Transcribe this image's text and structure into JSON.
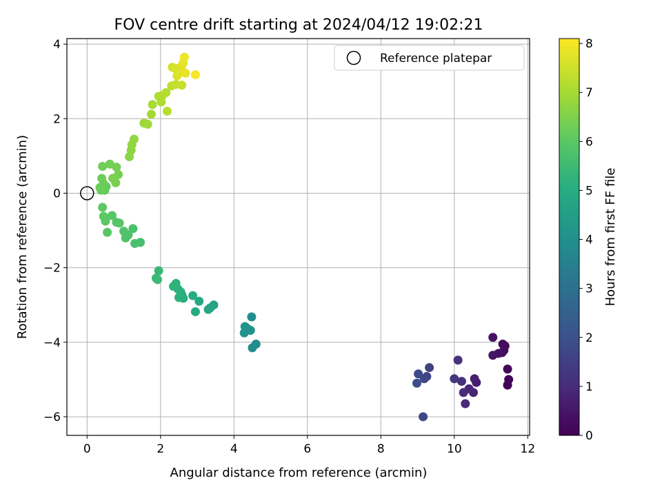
{
  "chart_data": {
    "type": "scatter",
    "title": "FOV centre drift starting at 2024/04/12 19:02:21",
    "xlabel": "Angular distance from reference (arcmin)",
    "ylabel": "Rotation from reference (arcmin)",
    "xlim": [
      -0.55,
      12.05
    ],
    "ylim": [
      -6.5,
      4.15
    ],
    "xticks": [
      0,
      2,
      4,
      6,
      8,
      10,
      12
    ],
    "yticks": [
      -6,
      -4,
      -2,
      0,
      2,
      4
    ],
    "grid": true,
    "legend": {
      "position": "top-right",
      "entries": [
        "Reference platepar"
      ]
    },
    "reference_point": {
      "x": 0,
      "y": 0,
      "label": "Reference platepar"
    },
    "colorbar": {
      "label": "Hours from first FF file",
      "range": [
        0,
        8.1
      ],
      "ticks": [
        0,
        1,
        2,
        3,
        4,
        5,
        6,
        7,
        8
      ],
      "colormap": "viridis"
    },
    "points": [
      {
        "x": 11.45,
        "y": -5.15,
        "c": 0.05
      },
      {
        "x": 11.48,
        "y": -5.0,
        "c": 0.08
      },
      {
        "x": 11.45,
        "y": -4.72,
        "c": 0.12
      },
      {
        "x": 11.32,
        "y": -4.05,
        "c": 0.18
      },
      {
        "x": 11.38,
        "y": -4.1,
        "c": 0.22
      },
      {
        "x": 11.35,
        "y": -4.22,
        "c": 0.28
      },
      {
        "x": 11.3,
        "y": -4.28,
        "c": 0.32
      },
      {
        "x": 11.2,
        "y": -4.3,
        "c": 0.38
      },
      {
        "x": 11.05,
        "y": -3.87,
        "c": 0.42
      },
      {
        "x": 11.05,
        "y": -4.35,
        "c": 0.48
      },
      {
        "x": 10.6,
        "y": -5.08,
        "c": 0.6
      },
      {
        "x": 10.55,
        "y": -4.98,
        "c": 0.7
      },
      {
        "x": 10.52,
        "y": -5.35,
        "c": 0.8
      },
      {
        "x": 10.4,
        "y": -5.25,
        "c": 0.9
      },
      {
        "x": 10.3,
        "y": -5.65,
        "c": 0.95
      },
      {
        "x": 10.25,
        "y": -5.35,
        "c": 1.0
      },
      {
        "x": 10.2,
        "y": -5.05,
        "c": 1.1
      },
      {
        "x": 10.1,
        "y": -4.48,
        "c": 1.15
      },
      {
        "x": 10.0,
        "y": -4.98,
        "c": 1.25
      },
      {
        "x": 9.32,
        "y": -4.68,
        "c": 1.55
      },
      {
        "x": 9.25,
        "y": -4.92,
        "c": 1.65
      },
      {
        "x": 9.18,
        "y": -4.98,
        "c": 1.75
      },
      {
        "x": 9.15,
        "y": -6.0,
        "c": 1.7
      },
      {
        "x": 9.02,
        "y": -4.85,
        "c": 1.85
      },
      {
        "x": 8.98,
        "y": -5.1,
        "c": 1.95
      },
      {
        "x": 4.6,
        "y": -4.05,
        "c": 3.9
      },
      {
        "x": 4.5,
        "y": -4.15,
        "c": 3.95
      },
      {
        "x": 4.48,
        "y": -3.32,
        "c": 4.0
      },
      {
        "x": 4.45,
        "y": -3.68,
        "c": 4.05
      },
      {
        "x": 4.35,
        "y": -3.62,
        "c": 4.1
      },
      {
        "x": 4.3,
        "y": -3.58,
        "c": 4.12
      },
      {
        "x": 4.28,
        "y": -3.75,
        "c": 4.15
      },
      {
        "x": 3.45,
        "y": -3.0,
        "c": 4.65
      },
      {
        "x": 3.35,
        "y": -3.08,
        "c": 4.7
      },
      {
        "x": 3.3,
        "y": -3.12,
        "c": 4.75
      },
      {
        "x": 3.05,
        "y": -2.9,
        "c": 4.85
      },
      {
        "x": 2.95,
        "y": -3.18,
        "c": 4.9
      },
      {
        "x": 2.88,
        "y": -2.75,
        "c": 4.95
      },
      {
        "x": 2.62,
        "y": -2.82,
        "c": 5.05
      },
      {
        "x": 2.58,
        "y": -2.72,
        "c": 5.1
      },
      {
        "x": 2.55,
        "y": -2.65,
        "c": 5.12
      },
      {
        "x": 2.5,
        "y": -2.8,
        "c": 5.15
      },
      {
        "x": 2.48,
        "y": -2.58,
        "c": 5.18
      },
      {
        "x": 2.42,
        "y": -2.42,
        "c": 5.2
      },
      {
        "x": 2.35,
        "y": -2.5,
        "c": 5.22
      },
      {
        "x": 1.95,
        "y": -2.08,
        "c": 5.4
      },
      {
        "x": 1.92,
        "y": -2.32,
        "c": 5.45
      },
      {
        "x": 1.88,
        "y": -2.28,
        "c": 5.48
      },
      {
        "x": 1.45,
        "y": -1.32,
        "c": 5.65
      },
      {
        "x": 1.3,
        "y": -1.35,
        "c": 5.7
      },
      {
        "x": 1.25,
        "y": -0.95,
        "c": 5.72
      },
      {
        "x": 1.12,
        "y": -1.12,
        "c": 5.78
      },
      {
        "x": 1.05,
        "y": -1.2,
        "c": 5.82
      },
      {
        "x": 1.0,
        "y": -1.02,
        "c": 5.85
      },
      {
        "x": 0.88,
        "y": -0.8,
        "c": 5.88
      },
      {
        "x": 0.8,
        "y": -0.78,
        "c": 5.92
      },
      {
        "x": 0.68,
        "y": -0.6,
        "c": 5.95
      },
      {
        "x": 0.55,
        "y": -1.05,
        "c": 5.98
      },
      {
        "x": 0.5,
        "y": -0.75,
        "c": 6.0
      },
      {
        "x": 0.45,
        "y": -0.62,
        "c": 6.02
      },
      {
        "x": 0.42,
        "y": -0.38,
        "c": 6.05
      },
      {
        "x": 0.48,
        "y": 0.08,
        "c": 6.15
      },
      {
        "x": 0.52,
        "y": 0.18,
        "c": 6.18
      },
      {
        "x": 0.45,
        "y": 0.25,
        "c": 6.2
      },
      {
        "x": 0.38,
        "y": 0.08,
        "c": 6.22
      },
      {
        "x": 0.35,
        "y": 0.15,
        "c": 6.25
      },
      {
        "x": 0.4,
        "y": 0.4,
        "c": 6.28
      },
      {
        "x": 0.42,
        "y": 0.72,
        "c": 6.3
      },
      {
        "x": 0.62,
        "y": 0.78,
        "c": 6.35
      },
      {
        "x": 0.8,
        "y": 0.7,
        "c": 6.38
      },
      {
        "x": 0.85,
        "y": 0.5,
        "c": 6.4
      },
      {
        "x": 0.78,
        "y": 0.28,
        "c": 6.42
      },
      {
        "x": 0.7,
        "y": 0.4,
        "c": 6.45
      },
      {
        "x": 1.15,
        "y": 0.98,
        "c": 6.65
      },
      {
        "x": 1.2,
        "y": 1.15,
        "c": 6.7
      },
      {
        "x": 1.22,
        "y": 1.3,
        "c": 6.72
      },
      {
        "x": 1.28,
        "y": 1.45,
        "c": 6.75
      },
      {
        "x": 1.55,
        "y": 1.88,
        "c": 6.88
      },
      {
        "x": 1.65,
        "y": 1.85,
        "c": 6.92
      },
      {
        "x": 1.75,
        "y": 2.12,
        "c": 6.98
      },
      {
        "x": 1.78,
        "y": 2.38,
        "c": 7.02
      },
      {
        "x": 1.95,
        "y": 2.6,
        "c": 7.1
      },
      {
        "x": 2.02,
        "y": 2.45,
        "c": 7.12
      },
      {
        "x": 2.05,
        "y": 2.62,
        "c": 7.15
      },
      {
        "x": 2.15,
        "y": 2.7,
        "c": 7.18
      },
      {
        "x": 2.18,
        "y": 2.2,
        "c": 7.2
      },
      {
        "x": 2.3,
        "y": 2.88,
        "c": 7.3
      },
      {
        "x": 2.42,
        "y": 2.92,
        "c": 7.35
      },
      {
        "x": 2.58,
        "y": 2.9,
        "c": 7.4
      },
      {
        "x": 2.32,
        "y": 3.38,
        "c": 7.55
      },
      {
        "x": 2.4,
        "y": 3.35,
        "c": 7.6
      },
      {
        "x": 2.45,
        "y": 3.15,
        "c": 7.65
      },
      {
        "x": 2.5,
        "y": 3.22,
        "c": 7.7
      },
      {
        "x": 2.58,
        "y": 3.42,
        "c": 7.75
      },
      {
        "x": 2.62,
        "y": 3.5,
        "c": 7.8
      },
      {
        "x": 2.68,
        "y": 3.22,
        "c": 7.85
      },
      {
        "x": 2.65,
        "y": 3.65,
        "c": 7.9
      },
      {
        "x": 2.95,
        "y": 3.18,
        "c": 8.0
      }
    ]
  }
}
